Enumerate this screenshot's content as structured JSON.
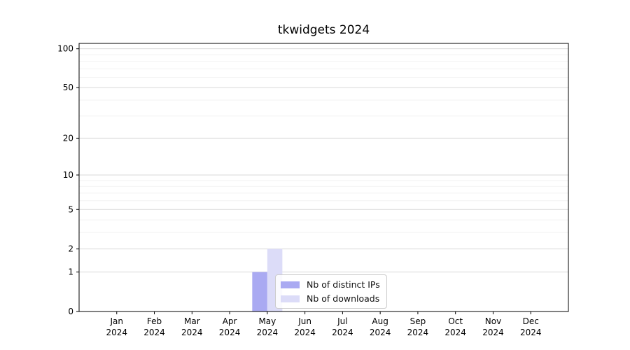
{
  "figure": {
    "title": "tkwidgets 2024",
    "background": "#ffffff"
  },
  "chart_data": {
    "type": "bar",
    "title": "tkwidgets 2024",
    "xlabel": "",
    "ylabel": "",
    "categories": [
      "Jan",
      "Feb",
      "Mar",
      "Apr",
      "May",
      "Jun",
      "Jul",
      "Aug",
      "Sep",
      "Oct",
      "Nov",
      "Dec"
    ],
    "x_year_label": "2024",
    "series": [
      {
        "name": "Nb of distinct IPs",
        "color": "#aaaaf2",
        "values": [
          0,
          0,
          0,
          0,
          1,
          0,
          0,
          0,
          0,
          0,
          0,
          0
        ]
      },
      {
        "name": "Nb of downloads",
        "color": "#dcdcf8",
        "values": [
          0,
          0,
          0,
          0,
          2,
          0,
          0,
          0,
          0,
          0,
          0,
          0
        ]
      }
    ],
    "y_scale": "log10(1+v)",
    "ylim": [
      0,
      110
    ],
    "y_ticks": [
      0,
      1,
      2,
      5,
      10,
      20,
      50,
      100
    ],
    "y_tick_labels": [
      "0",
      "1",
      "2",
      "5",
      "10",
      "20",
      "50",
      "100"
    ],
    "y_minor_gridlines": [
      3,
      4,
      6,
      7,
      8,
      9,
      30,
      40,
      60,
      70,
      80,
      90
    ],
    "grid": "horizontal",
    "legend_position": "inside lower-center",
    "bar_layout": "grouped, centered on month tick, width 0.4 of slot"
  },
  "style_colors": {
    "spine": "#000000",
    "tick_label": "#000000",
    "grid_major": "#d9d9d9",
    "grid_minor": "#f2f2f2",
    "legend_border": "#cccccc"
  }
}
